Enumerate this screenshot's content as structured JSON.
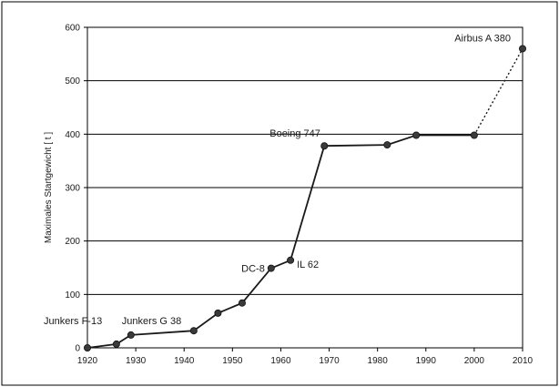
{
  "colors": {
    "line": "#1a1a1a",
    "marker": "#3a3a3a",
    "grid": "#000000",
    "frame": "#000000",
    "background": "#ffffff"
  },
  "chart_data": {
    "type": "line",
    "title": "",
    "xlabel": "",
    "ylabel": "Maximales Startgewicht [ t ]",
    "xlim": [
      1920,
      2010
    ],
    "ylim": [
      0,
      600
    ],
    "xticks": [
      "1920",
      "1930",
      "1940",
      "1950",
      "1960",
      "1970",
      "1980",
      "1990",
      "2000",
      "2010"
    ],
    "yticks": [
      "0",
      "100",
      "200",
      "300",
      "400",
      "500",
      "600"
    ],
    "grid": "horizontal",
    "legend": "none",
    "series": [
      {
        "style": "solid",
        "points": [
          {
            "x": 1920,
            "y": 0
          },
          {
            "x": 1926,
            "y": 7
          },
          {
            "x": 1929,
            "y": 24
          },
          {
            "x": 1942,
            "y": 32
          },
          {
            "x": 1947,
            "y": 65
          },
          {
            "x": 1952,
            "y": 84
          },
          {
            "x": 1958,
            "y": 149
          },
          {
            "x": 1962,
            "y": 164
          },
          {
            "x": 1969,
            "y": 378
          },
          {
            "x": 1982,
            "y": 380
          },
          {
            "x": 1988,
            "y": 398
          },
          {
            "x": 2000,
            "y": 398
          }
        ]
      },
      {
        "style": "dotted",
        "points": [
          {
            "x": 2000,
            "y": 398
          },
          {
            "x": 2010,
            "y": 560
          }
        ]
      }
    ],
    "annotations": [
      {
        "text": "Junkers F-13",
        "x": 1920,
        "y": 0,
        "anchor": "above-left"
      },
      {
        "text": "Junkers G 38",
        "x": 1929,
        "y": 24,
        "anchor": "above-right"
      },
      {
        "text": "DC-8",
        "x": 1958,
        "y": 149,
        "anchor": "left"
      },
      {
        "text": "IL 62",
        "x": 1962,
        "y": 164,
        "anchor": "right-below"
      },
      {
        "text": "Boeing 747",
        "x": 1969,
        "y": 378,
        "anchor": "above-right"
      },
      {
        "text": "Airbus A 380",
        "x": 2010,
        "y": 560,
        "anchor": "left"
      }
    ]
  }
}
